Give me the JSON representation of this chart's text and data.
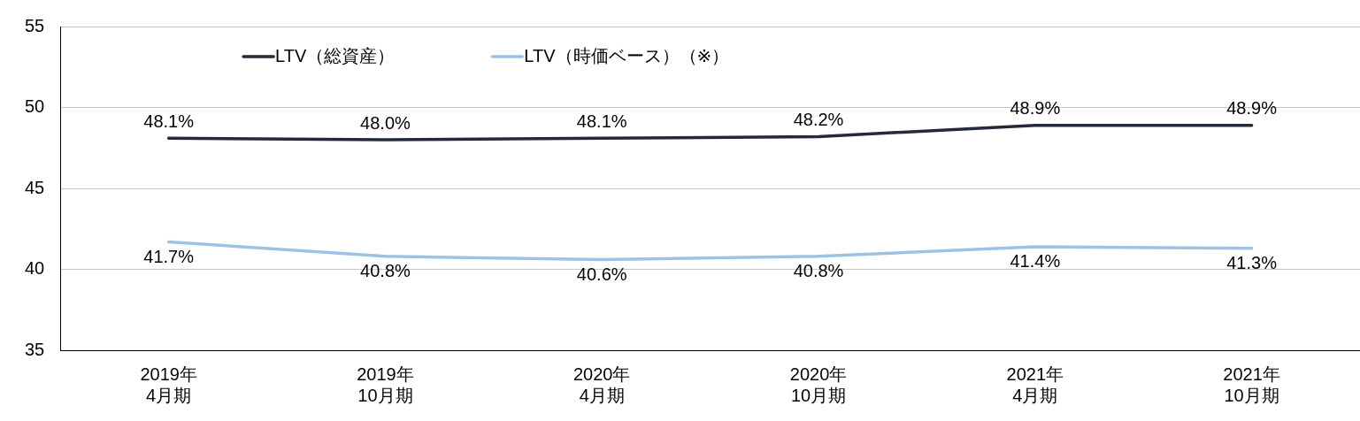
{
  "chart_data": {
    "type": "line",
    "categories": [
      "2019年\n4月期",
      "2019年\n10月期",
      "2020年\n4月期",
      "2020年\n10月期",
      "2021年\n4月期",
      "2021年\n10月期"
    ],
    "series": [
      {
        "name": "LTV（総資産）",
        "color": "#232a3a",
        "values": [
          48.1,
          48.0,
          48.1,
          48.2,
          48.9,
          48.9
        ],
        "value_labels": [
          "48.1%",
          "48.0%",
          "48.1%",
          "48.2%",
          "48.9%",
          "48.9%"
        ]
      },
      {
        "name": "LTV（時価ベース）（※）",
        "color": "#9cc3e6",
        "values": [
          41.7,
          40.8,
          40.6,
          40.8,
          41.4,
          41.3
        ],
        "value_labels": [
          "41.7%",
          "40.8%",
          "40.6%",
          "40.8%",
          "41.4%",
          "41.3%"
        ]
      }
    ],
    "ylim": [
      35,
      55
    ],
    "yticks": [
      35,
      40,
      45,
      50,
      55
    ],
    "grid": "y",
    "legend": "top",
    "marker": "none",
    "line_style": "solid"
  }
}
